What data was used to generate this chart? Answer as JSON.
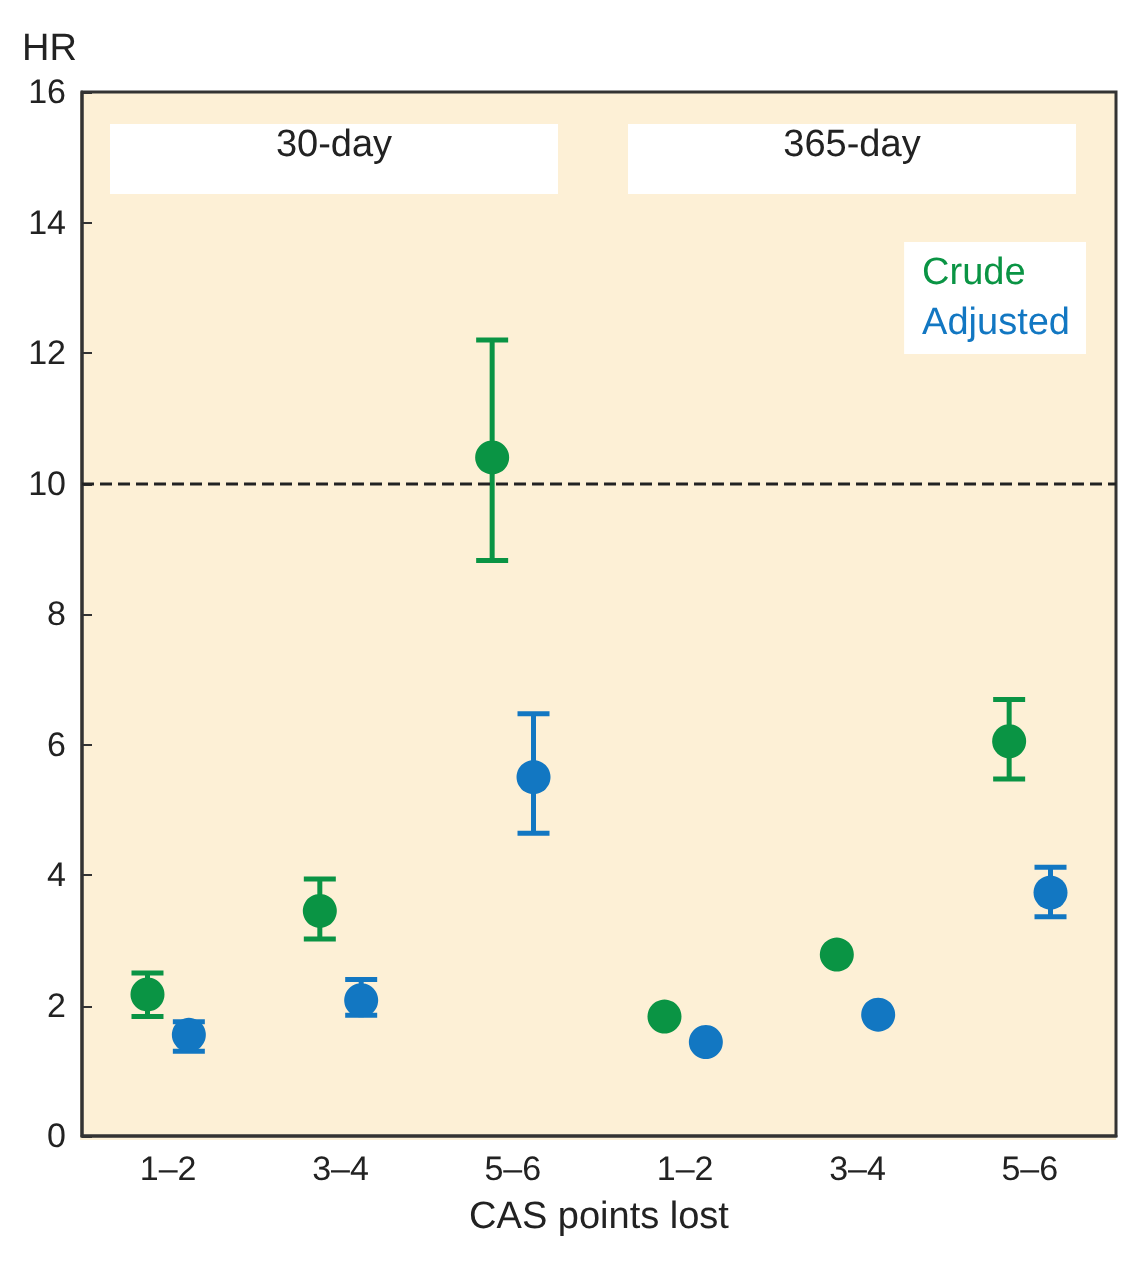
{
  "chart_data": {
    "type": "scatter",
    "ylabel": "HR",
    "xlabel": "CAS points lost",
    "categories": [
      "1–2",
      "3–4",
      "5–6",
      "1–2",
      "3–4",
      "5–6"
    ],
    "series": [
      {
        "name": "Crude",
        "color": "#0a9444",
        "values": [
          2.17,
          3.45,
          10.4,
          1.83,
          2.78,
          6.05
        ],
        "errors": [
          [
            1.83,
            2.5
          ],
          [
            3.02,
            3.94
          ],
          [
            8.82,
            12.2
          ],
          null,
          null,
          [
            5.47,
            6.69
          ]
        ]
      },
      {
        "name": "Adjusted",
        "color": "#1277c2",
        "values": [
          1.55,
          2.08,
          5.5,
          1.44,
          1.86,
          3.73
        ],
        "errors": [
          [
            1.3,
            1.75
          ],
          [
            1.85,
            2.4
          ],
          [
            4.64,
            6.47
          ],
          null,
          null,
          [
            3.36,
            4.12
          ]
        ]
      }
    ],
    "ylim": [
      0,
      16
    ],
    "yticks": [
      0,
      2,
      4,
      6,
      8,
      10,
      12,
      14,
      16
    ],
    "ref_lines": [
      {
        "axis": "y",
        "value": 10,
        "color": "#222222",
        "line_style": "dashed"
      }
    ],
    "annotations": [
      "30-day",
      "365-day"
    ],
    "legend": "top right",
    "marker": "circle",
    "grid": false
  }
}
